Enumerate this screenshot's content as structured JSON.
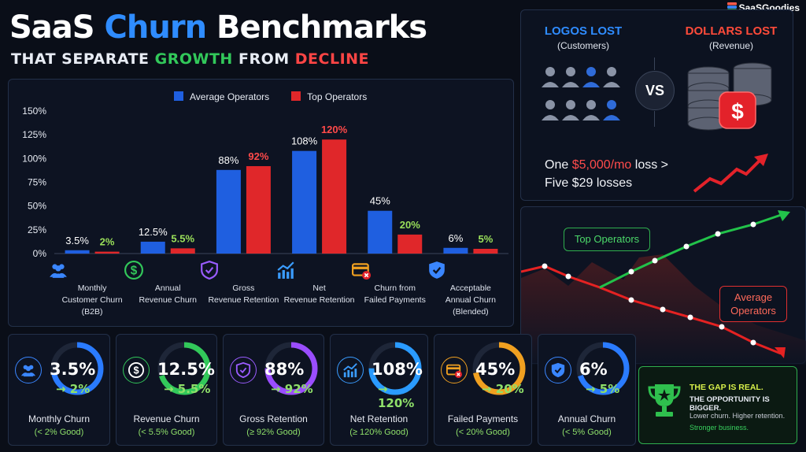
{
  "header": {
    "title_part1": "SaaS",
    "title_part2": "Churn",
    "title_part3": "Benchmarks",
    "subtitle_part1": "THAT SEPARATE",
    "subtitle_part2": "GROWTH",
    "subtitle_part3": "FROM",
    "subtitle_part4": "DECLINE",
    "brand": "SaaSGoodies"
  },
  "colors": {
    "average": "#1f5fe0",
    "top": "#e0272a",
    "green": "#32c85a",
    "red": "#ff4545",
    "accent_blue": "#2f8cff"
  },
  "chart_data": {
    "type": "bar",
    "categories": [
      "Monthly Customer Churn (B2B)",
      "Annual Revenue Churn",
      "Gross Revenue Retention",
      "Net Revenue Retention",
      "Churn from Failed Payments",
      "Acceptable Annual Churn (Blended)"
    ],
    "category_lines": [
      [
        "Monthly",
        "Customer Churn",
        "(B2B)"
      ],
      [
        "Annual",
        "Revenue Churn"
      ],
      [
        "Gross",
        "Revenue Retention"
      ],
      [
        "Net",
        "Revenue Retention"
      ],
      [
        "Churn from",
        "Failed Payments"
      ],
      [
        "Acceptable",
        "Annual Churn",
        "(Blended)"
      ]
    ],
    "category_icons": [
      "users-icon",
      "dollar-icon",
      "shield-icon",
      "trend-up-icon",
      "credit-card-x-icon",
      "shield-check-icon"
    ],
    "series": [
      {
        "name": "Average Operators",
        "values": [
          3.5,
          12.5,
          88,
          108,
          45,
          6
        ]
      },
      {
        "name": "Top Operators",
        "values": [
          2,
          5.5,
          92,
          120,
          20,
          5
        ]
      }
    ],
    "data_labels": [
      [
        "3.5%",
        "12.5%",
        "88%",
        "108%",
        "45%",
        "6%"
      ],
      [
        "2%",
        "5.5%",
        "92%",
        "120%",
        "20%",
        "5%"
      ]
    ],
    "yticks": [
      "0%",
      "25%",
      "50%",
      "75%",
      "100%",
      "125%",
      "150%"
    ],
    "ylim": [
      0,
      150
    ],
    "legend_position": "top-center"
  },
  "comparison": {
    "left_title": "LOGOS LOST",
    "left_sub": "(Customers)",
    "vs": "VS",
    "right_title": "DOLLARS LOST",
    "right_sub": "(Revenue)",
    "line1_a": "One",
    "line1_b": "$5,000/",
    "line1_c": "mo",
    "line1_d": "loss >",
    "line2": "Five $29 losses"
  },
  "trend": {
    "top_label": "Top Operators",
    "avg_label_line1": "Average",
    "avg_label_line2": "Operators"
  },
  "cards": [
    {
      "avg": "3.5%",
      "top": "→ 2%",
      "label": "Monthly Churn",
      "good": "(< 2% Good)",
      "icon": "users-icon",
      "ring": "#2a7bff",
      "fill": 0.72
    },
    {
      "avg": "12.5%",
      "top": "→ 5.5%",
      "label": "Revenue Churn",
      "good": "(< 5.5% Good)",
      "icon": "dollar-icon",
      "ring": "#32c85a",
      "fill": 0.7
    },
    {
      "avg": "88%",
      "top": "→ 92%",
      "label": "Gross Retention",
      "good": "(≥ 92% Good)",
      "icon": "shield-icon",
      "ring": "#9a4dff",
      "fill": 0.75
    },
    {
      "avg": "108%",
      "top": "→ 120%",
      "label": "Net Retention",
      "good": "(≥ 120% Good)",
      "icon": "trend-up-icon",
      "ring": "#2a9bff",
      "fill": 0.75
    },
    {
      "avg": "45%",
      "top": "→ 20%",
      "label": "Failed Payments",
      "good": "(< 20% Good)",
      "icon": "credit-card-x-icon",
      "ring": "#f0a020",
      "fill": 0.72
    },
    {
      "avg": "6%",
      "top": "→ 5%",
      "label": "Annual Churn",
      "good": "(< 5% Good)",
      "icon": "shield-check-icon",
      "ring": "#2a7bff",
      "fill": 0.7
    }
  ],
  "gap": {
    "line1": "THE GAP IS REAL.",
    "line2": "THE OPPORTUNITY IS BIGGER.",
    "line3": "Lower churn. Higher retention.",
    "line4": "Stronger business."
  }
}
